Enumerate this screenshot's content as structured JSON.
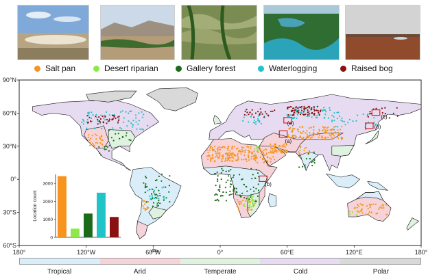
{
  "photos": [
    {
      "name": "salt-pan-photo",
      "sky": "#8fb3dd",
      "ground": "#d9ccb3"
    },
    {
      "name": "desert-riparian-photo",
      "sky": "#c7d6e6",
      "ground": "#9e8b6d"
    },
    {
      "name": "gallery-forest-photo",
      "sky": "#bfc9bf",
      "ground": "#5d7a3c"
    },
    {
      "name": "waterlogging-photo",
      "sky": "#6aa9c8",
      "ground": "#3f7a3a"
    },
    {
      "name": "raised-bog-photo",
      "sky": "#d8d8d8",
      "ground": "#9a4a2a"
    }
  ],
  "legend": [
    {
      "label": "Salt pan",
      "color": "#f7941d"
    },
    {
      "label": "Desert riparian",
      "color": "#8ee84a"
    },
    {
      "label": "Gallery forest",
      "color": "#1b6b1b"
    },
    {
      "label": "Waterlogging",
      "color": "#1fc3c8"
    },
    {
      "label": "Raised bog",
      "color": "#8b1010"
    }
  ],
  "map": {
    "lat_labels": [
      "90°N",
      "60°N",
      "30°N",
      "0°",
      "30°S",
      "60°S"
    ],
    "lon_labels": [
      "180°",
      "120°W",
      "60°W",
      "0°",
      "60°E",
      "120°E",
      "180°"
    ],
    "boxes": [
      "(a)",
      "(b)",
      "(c)",
      "(d)",
      "(e)"
    ]
  },
  "chart_data": {
    "type": "bar",
    "categories": [
      "Salt pan",
      "Desert riparian",
      "Gallery forest",
      "Waterlogging",
      "Raised bog"
    ],
    "values": [
      3400,
      480,
      1320,
      2480,
      1130
    ],
    "colors": [
      "#f7941d",
      "#8ee84a",
      "#1b6b1b",
      "#1fc3c8",
      "#8b1010"
    ],
    "ylabel": "Location count",
    "yticks": [
      0,
      1000,
      2000,
      3000
    ],
    "ylim": [
      0,
      3500
    ]
  },
  "climate_bar": [
    {
      "label": "Tropical",
      "color": "#d9eef9"
    },
    {
      "label": "Arid",
      "color": "#f6d3d8"
    },
    {
      "label": "Temperate",
      "color": "#dff1df"
    },
    {
      "label": "Cold",
      "color": "#e6dbf1"
    },
    {
      "label": "Polar",
      "color": "#d9d9d9"
    }
  ]
}
